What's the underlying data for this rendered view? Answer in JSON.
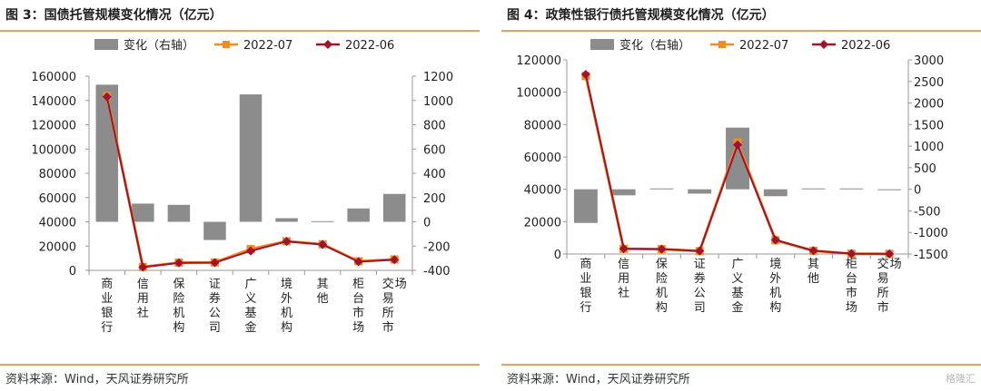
{
  "figures": [
    {
      "title": "图 3：国债托管规模变化情况（亿元）",
      "source": "资料来源：Wind，天风证券研究所"
    },
    {
      "title": "图 4：政策性银行债托管规模变化情况（亿元）",
      "source": "资料来源：Wind，天风证券研究所"
    }
  ],
  "watermark": "格隆汇",
  "chart_data": [
    {
      "type": "bar",
      "title": "",
      "categories": [
        "商业银行",
        "信用社",
        "保险机构",
        "证券公司",
        "广义基金",
        "境外机构",
        "其他",
        "柜台市场",
        "交易所市场"
      ],
      "legend": [
        "变化（右轴）",
        "2022-07",
        "2022-06"
      ],
      "legend_position": "top",
      "series": [
        {
          "name": "变化（右轴）",
          "type": "bar",
          "axis": "right",
          "color": "#8c8c8c",
          "values": [
            1130,
            150,
            140,
            -150,
            1050,
            30,
            5,
            110,
            230
          ]
        },
        {
          "name": "2022-07",
          "type": "line",
          "axis": "left",
          "color": "#f28c1e",
          "values": [
            144000,
            2800,
            6400,
            6500,
            17500,
            24000,
            21500,
            7500,
            9000
          ]
        },
        {
          "name": "2022-06",
          "type": "line",
          "axis": "left",
          "color": "#a0122e",
          "values": [
            143000,
            2600,
            6200,
            6400,
            16000,
            23800,
            21300,
            7100,
            8800
          ]
        }
      ],
      "left_axis": {
        "min": 0,
        "max": 160000,
        "ticks": [
          0,
          20000,
          40000,
          60000,
          80000,
          100000,
          120000,
          140000,
          160000
        ]
      },
      "right_axis": {
        "min": -400,
        "max": 1200,
        "ticks": [
          -400,
          -200,
          0,
          200,
          400,
          600,
          800,
          1000,
          1200
        ]
      },
      "grid": false
    },
    {
      "type": "bar",
      "title": "",
      "categories": [
        "商业银行",
        "信用社",
        "保险机构",
        "证券公司",
        "广义基金",
        "境外机构",
        "其他",
        "柜台市场",
        "交易所市场"
      ],
      "legend": [
        "变化（右轴）",
        "2022-07",
        "2022-06"
      ],
      "legend_position": "top",
      "series": [
        {
          "name": "变化（右轴）",
          "type": "bar",
          "axis": "right",
          "color": "#8c8c8c",
          "values": [
            -780,
            -140,
            20,
            -100,
            1430,
            -160,
            20,
            20,
            0
          ]
        },
        {
          "name": "2022-07",
          "type": "line",
          "axis": "left",
          "color": "#f28c1e",
          "values": [
            110000,
            3200,
            3000,
            1800,
            69000,
            8500,
            2000,
            200,
            100
          ]
        },
        {
          "name": "2022-06",
          "type": "line",
          "axis": "left",
          "color": "#a0122e",
          "values": [
            111000,
            3300,
            3000,
            1900,
            67500,
            8700,
            2000,
            200,
            100
          ]
        }
      ],
      "left_axis": {
        "min": 0,
        "max": 120000,
        "ticks": [
          0,
          20000,
          40000,
          60000,
          80000,
          100000,
          120000
        ]
      },
      "right_axis": {
        "min": -1500,
        "max": 3000,
        "ticks": [
          -1500,
          -1000,
          -500,
          0,
          500,
          1000,
          1500,
          2000,
          2500,
          3000
        ]
      },
      "grid": false
    }
  ]
}
